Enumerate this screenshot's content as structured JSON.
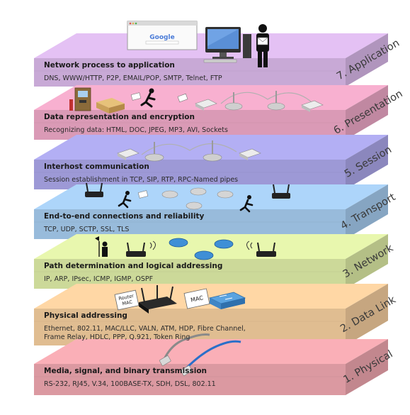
{
  "layers": [
    {
      "number": "7",
      "name": "7. Application",
      "title": "Network process to application",
      "desc": [
        "DNS, WWW/HTTP, P2P, EMAIL/POP, SMTP, Telnet, FTP"
      ],
      "color": "#d7b6e6"
    },
    {
      "number": "6",
      "name": "6. Presentation",
      "title": "Data representation and encryption",
      "desc": [
        "Recognizing data: HTML, DOC, JPEG, MP3, AVI, Sockets"
      ],
      "color": "#eaa6c4"
    },
    {
      "number": "5",
      "name": "5. Session",
      "title": "Interhost communication",
      "desc": [
        "Session establishment in TCP, SIP, RTP, RPC-Named pipes"
      ],
      "color": "#a9a5e6"
    },
    {
      "number": "4",
      "name": "4. Transport",
      "title": "End-to-end connections and reliability",
      "desc": [
        "TCP, UDP, SCTP, SSL, TLS"
      ],
      "color": "#a3c9ec"
    },
    {
      "number": "3",
      "name": "3. Network",
      "title": "Path determination and logical addressing",
      "desc": [
        "IP, ARP, IPsec, ICMP, IGMP, OSPF"
      ],
      "color": "#dbe9a4"
    },
    {
      "number": "2",
      "name": "2. Data Link",
      "title": "Physical addressing",
      "desc": [
        "Ethernet, 802.11, MAC/LLC, VALN, ATM, HDP, Fibre Channel,",
        "Frame Relay, HDLC,  PPP, Q.921, Token Ring"
      ],
      "color": "#f1cb9c"
    },
    {
      "number": "1",
      "name": "1. Physical",
      "title": "Media, signal, and binary transmission",
      "desc": [
        "RS-232, RJ45, V.34, 100BASE-TX, SDH, DSL, 802.11"
      ],
      "color": "#eca5ad"
    }
  ],
  "browser": {
    "logo": "Google"
  },
  "tags": {
    "router_mac_line1": "Router",
    "router_mac_line2": "MAC",
    "mac": "MAC"
  },
  "icons": [
    "browser-window-icon",
    "computer-icon",
    "person-with-letter-icon",
    "atm-icon",
    "package-icon",
    "running-person-icon",
    "envelope-icon",
    "router-icon",
    "bridge-icon",
    "flag-person-icon",
    "wifi-router-icon",
    "network-switch-icon",
    "ethernet-cable-icon"
  ]
}
